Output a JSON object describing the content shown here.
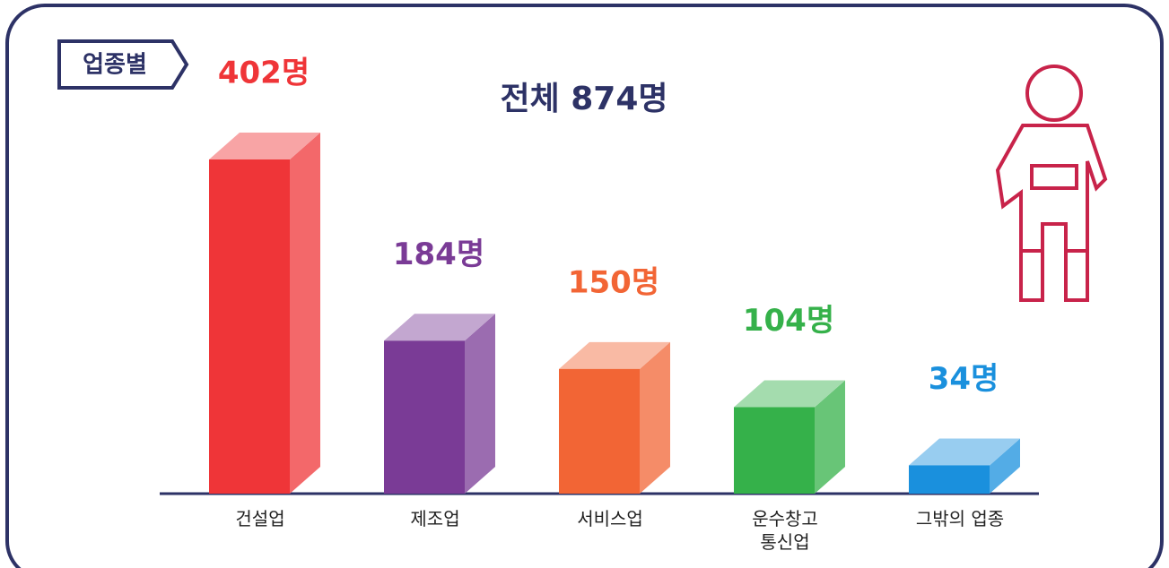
{
  "chart_data": {
    "type": "bar3d",
    "badge": "업종별",
    "title": "전체 874명",
    "categories": [
      "건설업",
      "제조업",
      "서비스업",
      "운수창고\n통신업",
      "그밖의 업종"
    ],
    "values": [
      402,
      184,
      150,
      104,
      34
    ],
    "value_labels": [
      "402명",
      "184명",
      "150명",
      "104명",
      "34명"
    ],
    "colors": [
      "#ef3538",
      "#7a3b96",
      "#f26535",
      "#35b14a",
      "#1a90dd"
    ]
  }
}
